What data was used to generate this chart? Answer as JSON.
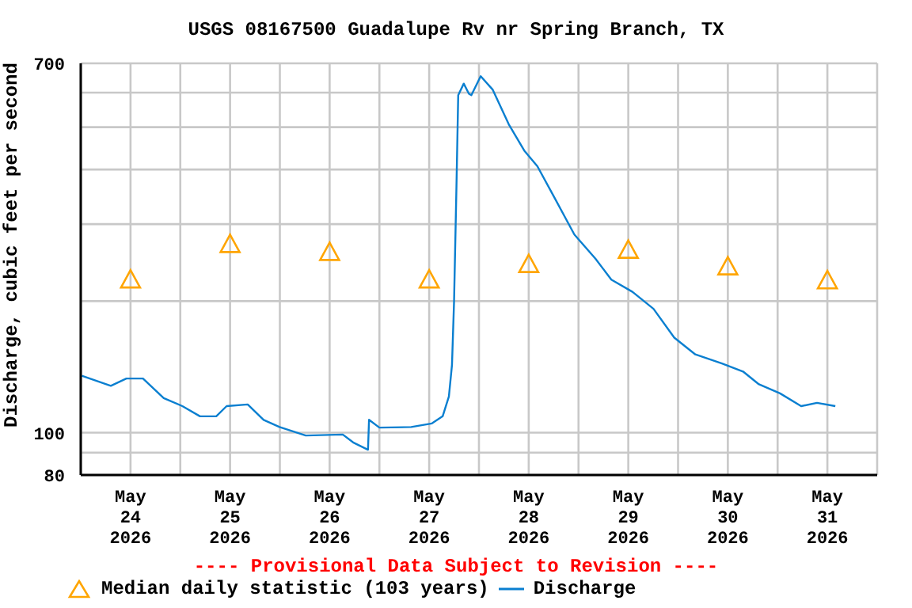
{
  "chart_data": {
    "type": "line",
    "title": "USGS 08167500 Guadalupe Rv nr Spring Branch, TX",
    "ylabel": "Discharge, cubic feet per second",
    "annotations": [
      "---- Provisional Data Subject to Revision ----"
    ],
    "log": "y",
    "grid": true,
    "legend": "bottom",
    "line_style": "solid",
    "xlim": [
      "2026-05-24T00:00",
      "2026-06-01T00:00"
    ],
    "xticks": [
      {
        "value": "2026-05-24T00:00",
        "label": null
      },
      {
        "value": "2026-05-24T12:00",
        "label": "May 24 2026"
      },
      {
        "value": "2026-05-25T00:00",
        "label": null
      },
      {
        "value": "2026-05-25T12:00",
        "label": "May 25 2026"
      },
      {
        "value": "2026-05-26T00:00",
        "label": null
      },
      {
        "value": "2026-05-26T12:00",
        "label": "May 26 2026"
      },
      {
        "value": "2026-05-27T00:00",
        "label": null
      },
      {
        "value": "2026-05-27T12:00",
        "label": "May 27 2026"
      },
      {
        "value": "2026-05-28T00:00",
        "label": null
      },
      {
        "value": "2026-05-28T12:00",
        "label": "May 28 2026"
      },
      {
        "value": "2026-05-29T00:00",
        "label": null
      },
      {
        "value": "2026-05-29T12:00",
        "label": "May 29 2026"
      },
      {
        "value": "2026-05-30T00:00",
        "label": null
      },
      {
        "value": "2026-05-30T12:00",
        "label": "May 30 2026"
      },
      {
        "value": "2026-05-31T00:00",
        "label": null
      },
      {
        "value": "2026-05-31T12:00",
        "label": "May 31 2026"
      },
      {
        "value": "2026-06-01T00:00",
        "label": null
      }
    ],
    "ylim": [
      80,
      700
    ],
    "yticks": [
      80,
      {
        "value": 90,
        "label": null
      },
      100,
      {
        "value": 200,
        "label": null
      },
      {
        "value": 300,
        "label": null
      },
      {
        "value": 400,
        "label": null
      },
      {
        "value": 500,
        "label": null
      },
      {
        "value": 600,
        "label": null
      },
      700
    ],
    "series": [
      {
        "name": "Median daily statistic (103 years)",
        "type": "scatter",
        "color": "#ffa500",
        "marker": "triangle",
        "x": [
          "2026-05-24T12:00",
          "2026-05-25T12:00",
          "2026-05-26T12:00",
          "2026-05-27T12:00",
          "2026-05-28T12:00",
          "2026-05-29T12:00",
          "2026-05-30T12:00",
          "2026-05-31T12:00"
        ],
        "values": [
          224,
          270,
          259,
          224,
          243,
          262,
          240,
          223
        ]
      },
      {
        "name": "Discharge",
        "color": "#0a7fd0",
        "marker": "none",
        "x": [
          "2026-05-24T00:15",
          "2026-05-24T07:15",
          "2026-05-24T11:00",
          "2026-05-24T15:00",
          "2026-05-24T20:00",
          "2026-05-25T00:30",
          "2026-05-25T04:45",
          "2026-05-25T08:40",
          "2026-05-25T11:10",
          "2026-05-25T16:15",
          "2026-05-25T20:05",
          "2026-05-25T23:55",
          "2026-05-26T06:15",
          "2026-05-26T15:10",
          "2026-05-26T17:40",
          "2026-05-26T21:15",
          "2026-05-26T21:30",
          "2026-05-27T00:00",
          "2026-05-27T07:40",
          "2026-05-27T12:40",
          "2026-05-27T15:15",
          "2026-05-27T16:45",
          "2026-05-27T17:30",
          "2026-05-27T18:00",
          "2026-05-27T18:35",
          "2026-05-27T19:00",
          "2026-05-27T20:20",
          "2026-05-27T21:35",
          "2026-05-27T22:10",
          "2026-05-28T00:25",
          "2026-05-28T03:20",
          "2026-05-28T07:10",
          "2026-05-28T10:55",
          "2026-05-28T14:05",
          "2026-05-28T17:55",
          "2026-05-28T23:00",
          "2026-05-29T04:05",
          "2026-05-29T07:55",
          "2026-05-29T13:00",
          "2026-05-29T18:05",
          "2026-05-29T23:05",
          "2026-05-30T04:10",
          "2026-05-30T10:35",
          "2026-05-30T15:40",
          "2026-05-30T19:30",
          "2026-05-31T00:35",
          "2026-05-31T05:40",
          "2026-05-31T09:30",
          "2026-05-31T13:55"
        ],
        "values": [
          135,
          128,
          133,
          133,
          120,
          115,
          109,
          109,
          115,
          116,
          107,
          103,
          98.5,
          99,
          95,
          91.4,
          107,
          102.7,
          103,
          105,
          109,
          121,
          143,
          200,
          369,
          592,
          629,
          596,
          592,
          654,
          609,
          508,
          442,
          407,
          349,
          284,
          250,
          224,
          210,
          192,
          165,
          151,
          144,
          138,
          129,
          123,
          115,
          117,
          115
        ]
      }
    ]
  }
}
